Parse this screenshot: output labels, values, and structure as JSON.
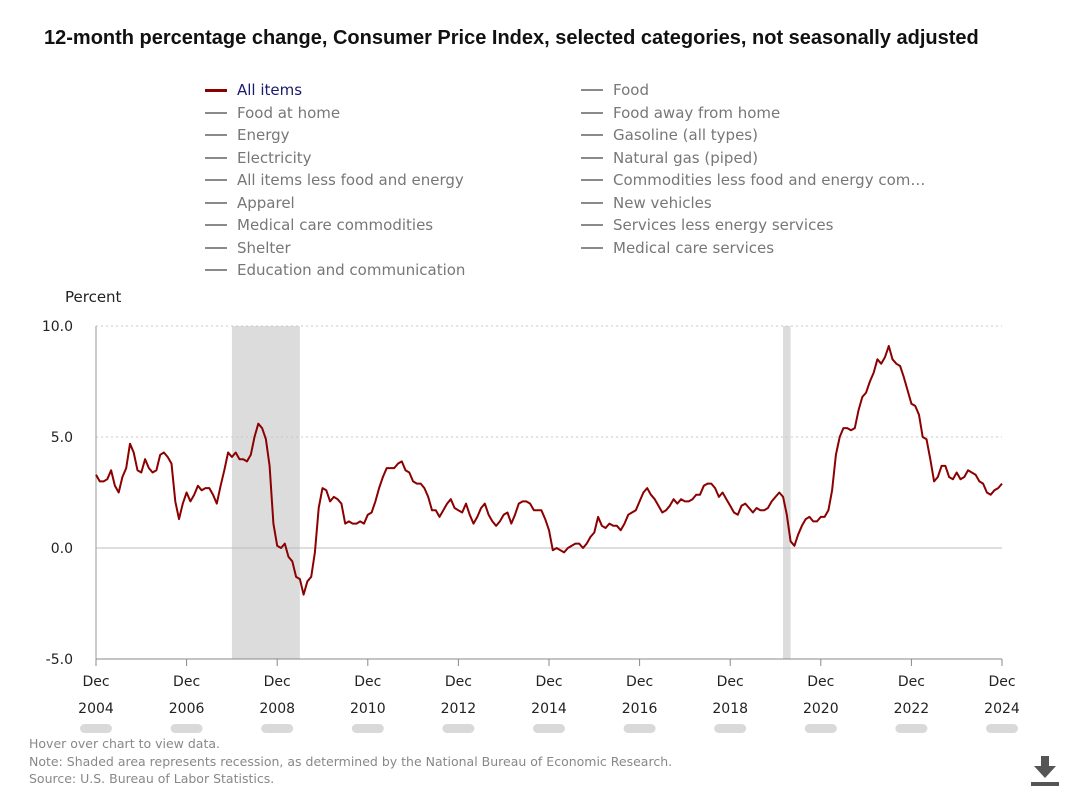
{
  "title": "12-month percentage change, Consumer Price Index, selected categories, not seasonally adjusted",
  "legend": {
    "left": [
      "All items",
      "Food at home",
      "Energy",
      "Electricity",
      "All items less food and energy",
      "Apparel",
      "Medical care commodities",
      "Shelter",
      "Education and communication"
    ],
    "right": [
      "Food",
      "Food away from home",
      "Gasoline (all types)",
      "Natural gas (piped)",
      "Commodities less food and energy com…",
      "New vehicles",
      "Services less energy services",
      "Medical care services"
    ],
    "active": "All items"
  },
  "y_unit_label": "Percent",
  "notes": {
    "hover": "Hover over chart to view data.",
    "note": "Note: Shaded area represents recession, as determined by the National Bureau of Economic Research.",
    "source": "Source: U.S. Bureau of Labor Statistics."
  },
  "download_icon": "download-icon",
  "colors": {
    "series": "#8b0000",
    "recession": "#dcdcdc",
    "legend_inactive": "#8a8a8a",
    "active_label": "#1a1a6e"
  },
  "chart_data": {
    "type": "line",
    "ylim": [
      -5,
      10
    ],
    "yticks": [
      "10.0",
      "5.0",
      "0.0",
      "-5.0"
    ],
    "ytick_values": [
      10,
      5,
      0,
      -5
    ],
    "grid": "horizontal dotted",
    "xlim": [
      "Dec 2004",
      "Dec 2024"
    ],
    "xtick_values": [
      2004.917,
      2006.917,
      2008.917,
      2010.917,
      2012.917,
      2014.917,
      2016.917,
      2018.917,
      2020.917,
      2022.917,
      2024.917
    ],
    "xticks": [
      {
        "month": "Dec",
        "year": "2004"
      },
      {
        "month": "Dec",
        "year": "2006"
      },
      {
        "month": "Dec",
        "year": "2008"
      },
      {
        "month": "Dec",
        "year": "2010"
      },
      {
        "month": "Dec",
        "year": "2012"
      },
      {
        "month": "Dec",
        "year": "2014"
      },
      {
        "month": "Dec",
        "year": "2016"
      },
      {
        "month": "Dec",
        "year": "2018"
      },
      {
        "month": "Dec",
        "year": "2020"
      },
      {
        "month": "Dec",
        "year": "2022"
      },
      {
        "month": "Dec",
        "year": "2024"
      }
    ],
    "recessions": [
      {
        "start": "Dec 2007",
        "end": "Jun 2009",
        "start_x": 2007.917,
        "end_x": 2009.417
      },
      {
        "start": "Feb 2020",
        "end": "Apr 2020",
        "start_x": 2020.083,
        "end_x": 2020.25
      }
    ],
    "series": [
      {
        "name": "All items",
        "start": "Dec 2004",
        "frequency": "monthly",
        "values": [
          3.3,
          3.0,
          3.0,
          3.1,
          3.5,
          2.8,
          2.5,
          3.2,
          3.6,
          4.7,
          4.3,
          3.5,
          3.4,
          4.0,
          3.6,
          3.4,
          3.5,
          4.2,
          4.3,
          4.1,
          3.8,
          2.1,
          1.3,
          2.0,
          2.5,
          2.1,
          2.4,
          2.8,
          2.6,
          2.7,
          2.7,
          2.4,
          2.0,
          2.8,
          3.5,
          4.3,
          4.1,
          4.3,
          4.0,
          4.0,
          3.9,
          4.2,
          5.0,
          5.6,
          5.4,
          4.9,
          3.7,
          1.1,
          0.1,
          0.0,
          0.2,
          -0.4,
          -0.6,
          -1.3,
          -1.4,
          -2.1,
          -1.5,
          -1.3,
          -0.2,
          1.8,
          2.7,
          2.6,
          2.1,
          2.3,
          2.2,
          2.0,
          1.1,
          1.2,
          1.1,
          1.1,
          1.2,
          1.1,
          1.5,
          1.6,
          2.1,
          2.7,
          3.2,
          3.6,
          3.6,
          3.6,
          3.8,
          3.9,
          3.5,
          3.4,
          3.0,
          2.9,
          2.9,
          2.7,
          2.3,
          1.7,
          1.7,
          1.4,
          1.7,
          2.0,
          2.2,
          1.8,
          1.7,
          1.6,
          2.0,
          1.5,
          1.1,
          1.4,
          1.8,
          2.0,
          1.5,
          1.2,
          1.0,
          1.2,
          1.5,
          1.6,
          1.1,
          1.5,
          2.0,
          2.1,
          2.1,
          2.0,
          1.7,
          1.7,
          1.7,
          1.3,
          0.8,
          -0.1,
          0.0,
          -0.1,
          -0.2,
          0.0,
          0.1,
          0.2,
          0.2,
          0.0,
          0.2,
          0.5,
          0.7,
          1.4,
          1.0,
          0.9,
          1.1,
          1.0,
          1.0,
          0.8,
          1.1,
          1.5,
          1.6,
          1.7,
          2.1,
          2.5,
          2.7,
          2.4,
          2.2,
          1.9,
          1.6,
          1.7,
          1.9,
          2.2,
          2.0,
          2.2,
          2.1,
          2.1,
          2.2,
          2.4,
          2.4,
          2.8,
          2.9,
          2.9,
          2.7,
          2.3,
          2.5,
          2.2,
          1.9,
          1.6,
          1.5,
          1.9,
          2.0,
          1.8,
          1.6,
          1.8,
          1.7,
          1.7,
          1.8,
          2.1,
          2.3,
          2.5,
          2.3,
          1.5,
          0.3,
          0.1,
          0.6,
          1.0,
          1.3,
          1.4,
          1.2,
          1.2,
          1.4,
          1.4,
          1.7,
          2.6,
          4.2,
          5.0,
          5.4,
          5.4,
          5.3,
          5.4,
          6.2,
          6.8,
          7.0,
          7.5,
          7.9,
          8.5,
          8.3,
          8.6,
          9.1,
          8.5,
          8.3,
          8.2,
          7.7,
          7.1,
          6.5,
          6.4,
          6.0,
          5.0,
          4.9,
          4.0,
          3.0,
          3.2,
          3.7,
          3.7,
          3.2,
          3.1,
          3.4,
          3.1,
          3.2,
          3.5,
          3.4,
          3.3,
          3.0,
          2.9,
          2.5,
          2.4,
          2.6,
          2.7,
          2.9
        ]
      }
    ]
  }
}
